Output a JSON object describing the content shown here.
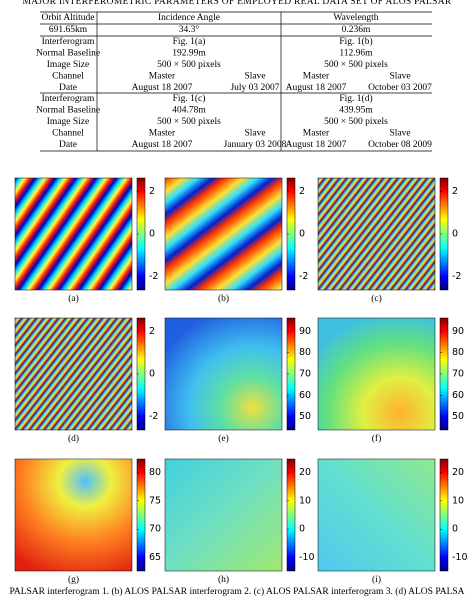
{
  "table": {
    "title": "MAJOR INTERFEROMETRIC PARAMETERS OF EMPLOYED REAL DATA SET OF ALOS PALSAR",
    "header": [
      "Orbit Altitude",
      "Incidence Angle",
      "Wavelength"
    ],
    "header_values": [
      "691.65km",
      "34.3°",
      "0.236m"
    ],
    "blocks": [
      [
        [
          "Interferogram",
          "Fig. 1(a)",
          "Fig. 1(b)"
        ],
        [
          "Normal Baseline",
          "192.99m",
          "112.96m"
        ],
        [
          "Image Size",
          "500 × 500 pixels",
          "500 × 500 pixels"
        ],
        [
          "Channel",
          "Master",
          "Slave",
          "Master",
          "Slave"
        ],
        [
          "Date",
          "August 18 2007",
          "July 03 2007",
          "August 18 2007",
          "October 03 2007"
        ]
      ],
      [
        [
          "Interferogram",
          "Fig. 1(c)",
          "Fig. 1(d)"
        ],
        [
          "Normal Baseline",
          "404.78m",
          "439.95m"
        ],
        [
          "Image Size",
          "500 × 500 pixels",
          "500 × 500 pixels"
        ],
        [
          "Channel",
          "Master",
          "Slave",
          "Master",
          "Slave"
        ],
        [
          "Date",
          "August 18 2007",
          "January 03 2008",
          "August 18 2007",
          "October 08 2009"
        ]
      ]
    ]
  },
  "panels": [
    {
      "label": "(a)",
      "colorbar_ticks": [
        2,
        0,
        -2
      ]
    },
    {
      "label": "(b)",
      "colorbar_ticks": [
        2,
        0,
        -2
      ]
    },
    {
      "label": "(c)",
      "colorbar_ticks": [
        2,
        0,
        -2
      ]
    },
    {
      "label": "(d)",
      "colorbar_ticks": [
        2,
        0,
        -2
      ]
    },
    {
      "label": "(e)",
      "colorbar_ticks": [
        90,
        80,
        70,
        60,
        50
      ]
    },
    {
      "label": "(f)",
      "colorbar_ticks": [
        90,
        80,
        70,
        60,
        50
      ]
    },
    {
      "label": "(g)",
      "colorbar_ticks": [
        80,
        75,
        70,
        65
      ]
    },
    {
      "label": "(h)",
      "colorbar_ticks": [
        20,
        10,
        0,
        -10
      ]
    },
    {
      "label": "(i)",
      "colorbar_ticks": [
        20,
        10,
        0,
        -10
      ]
    }
  ],
  "caption": "PALSAR interferogram 1. (b) ALOS PALSAR interferogram 2. (c) ALOS PALSAR interferogram 3. (d) ALOS PALSA"
}
